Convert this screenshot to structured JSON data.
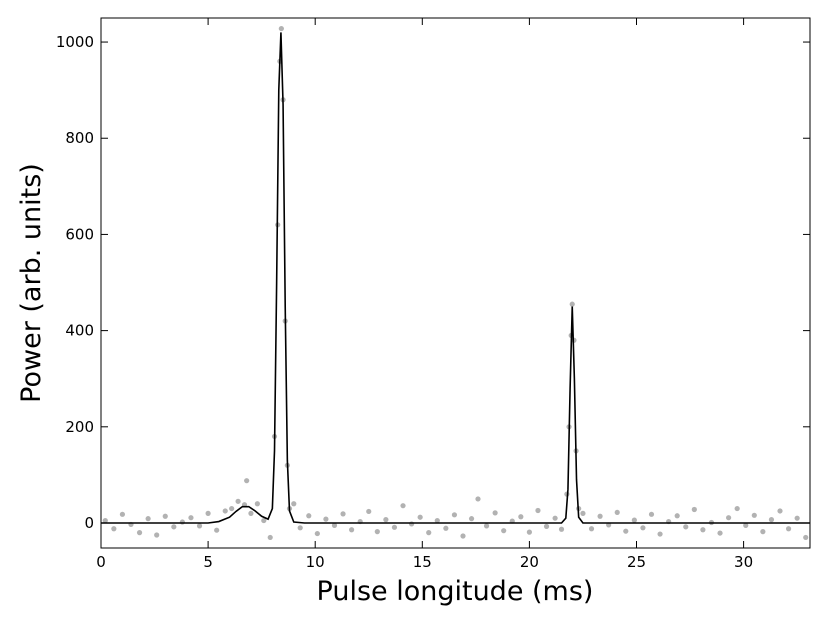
{
  "chart_data": {
    "type": "scatter",
    "x_label": "Pulse longitude (ms)",
    "y_label": "Power (arb. units)",
    "xlim": [
      0,
      33.1
    ],
    "ylim": [
      -52,
      1050
    ],
    "xticks": [
      0,
      5,
      10,
      15,
      20,
      25,
      30
    ],
    "yticks": [
      0,
      200,
      400,
      600,
      800,
      1000
    ],
    "color": "#555555",
    "x": [
      0.2,
      0.6,
      1.0,
      1.4,
      1.8,
      2.2,
      2.6,
      3.0,
      3.4,
      3.8,
      4.2,
      4.6,
      5.0,
      5.4,
      5.8,
      6.1,
      6.4,
      6.7,
      6.8,
      7.0,
      7.3,
      7.6,
      7.9,
      8.1,
      8.25,
      8.35,
      8.42,
      8.5,
      8.6,
      8.7,
      8.8,
      9.0,
      9.3,
      9.7,
      10.1,
      10.5,
      10.9,
      11.3,
      11.7,
      12.1,
      12.5,
      12.9,
      13.3,
      13.7,
      14.1,
      14.5,
      14.9,
      15.3,
      15.7,
      16.1,
      16.5,
      16.9,
      17.3,
      17.6,
      18.0,
      18.4,
      18.8,
      19.2,
      19.6,
      20.0,
      20.4,
      20.8,
      21.2,
      21.5,
      21.75,
      21.85,
      21.95,
      22.0,
      22.08,
      22.18,
      22.3,
      22.5,
      22.9,
      23.3,
      23.7,
      24.1,
      24.5,
      24.9,
      25.3,
      25.7,
      26.1,
      26.5,
      26.9,
      27.3,
      27.7,
      28.1,
      28.5,
      28.9,
      29.3,
      29.7,
      30.1,
      30.5,
      30.9,
      31.3,
      31.7,
      32.1,
      32.5,
      32.9
    ],
    "values": [
      5,
      -12,
      18,
      -3,
      -20,
      9,
      -25,
      14,
      -8,
      2,
      11,
      -6,
      20,
      -15,
      25,
      30,
      45,
      38,
      88,
      20,
      40,
      5,
      -30,
      180,
      620,
      960,
      1028,
      880,
      420,
      120,
      30,
      40,
      -10,
      15,
      -22,
      8,
      -5,
      19,
      -14,
      3,
      24,
      -18,
      7,
      -9,
      36,
      -2,
      12,
      -20,
      5,
      -11,
      17,
      -27,
      9,
      50,
      -6,
      21,
      -16,
      4,
      13,
      -19,
      26,
      -7,
      10,
      -13,
      60,
      200,
      390,
      455,
      380,
      150,
      30,
      20,
      -12,
      14,
      -4,
      22,
      -17,
      6,
      -10,
      18,
      -23,
      3,
      15,
      -8,
      28,
      -14,
      1,
      -21,
      11,
      30,
      -5,
      16,
      -18,
      7,
      25,
      -12,
      10,
      -30
    ],
    "fit": {
      "type": "line",
      "color": "#000000",
      "x": [
        0,
        5,
        5.5,
        6,
        6.3,
        6.6,
        6.9,
        7.2,
        7.5,
        7.8,
        8.0,
        8.1,
        8.2,
        8.3,
        8.4,
        8.5,
        8.6,
        8.7,
        8.8,
        9.0,
        9.5,
        20,
        21.5,
        21.7,
        21.8,
        21.9,
        22.0,
        22.1,
        22.2,
        22.3,
        22.5,
        23,
        33.1
      ],
      "values": [
        0,
        0,
        3,
        12,
        24,
        34,
        34,
        25,
        14,
        8,
        30,
        150,
        500,
        900,
        1020,
        870,
        450,
        130,
        25,
        2,
        0,
        0,
        0,
        10,
        70,
        280,
        450,
        300,
        90,
        12,
        0,
        0,
        0
      ]
    }
  }
}
